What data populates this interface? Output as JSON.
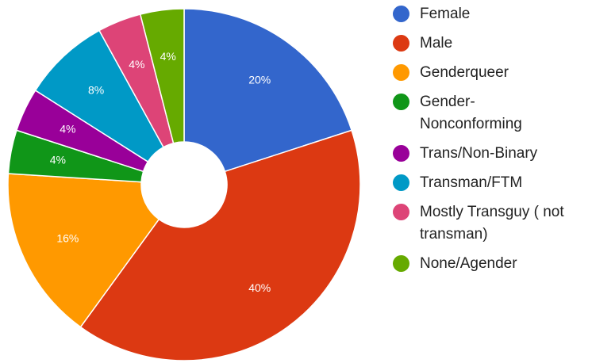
{
  "chart_data": {
    "type": "pie",
    "categories": [
      "Female",
      "Male",
      "Genderqueer",
      "Gender-Nonconforming",
      "Trans/Non-Binary",
      "Transman/FTM",
      "Mostly Transguy ( not transman)",
      "None/Agender"
    ],
    "values": [
      20,
      40,
      16,
      4,
      4,
      8,
      4,
      4
    ],
    "value_labels": [
      "20%",
      "40%",
      "16%",
      "4%",
      "4%",
      "8%",
      "4%",
      "4%"
    ],
    "colors": [
      "#3366cc",
      "#dc3912",
      "#ff9900",
      "#109618",
      "#990099",
      "#0099c6",
      "#dd4477",
      "#66aa00"
    ],
    "legend": "right"
  }
}
